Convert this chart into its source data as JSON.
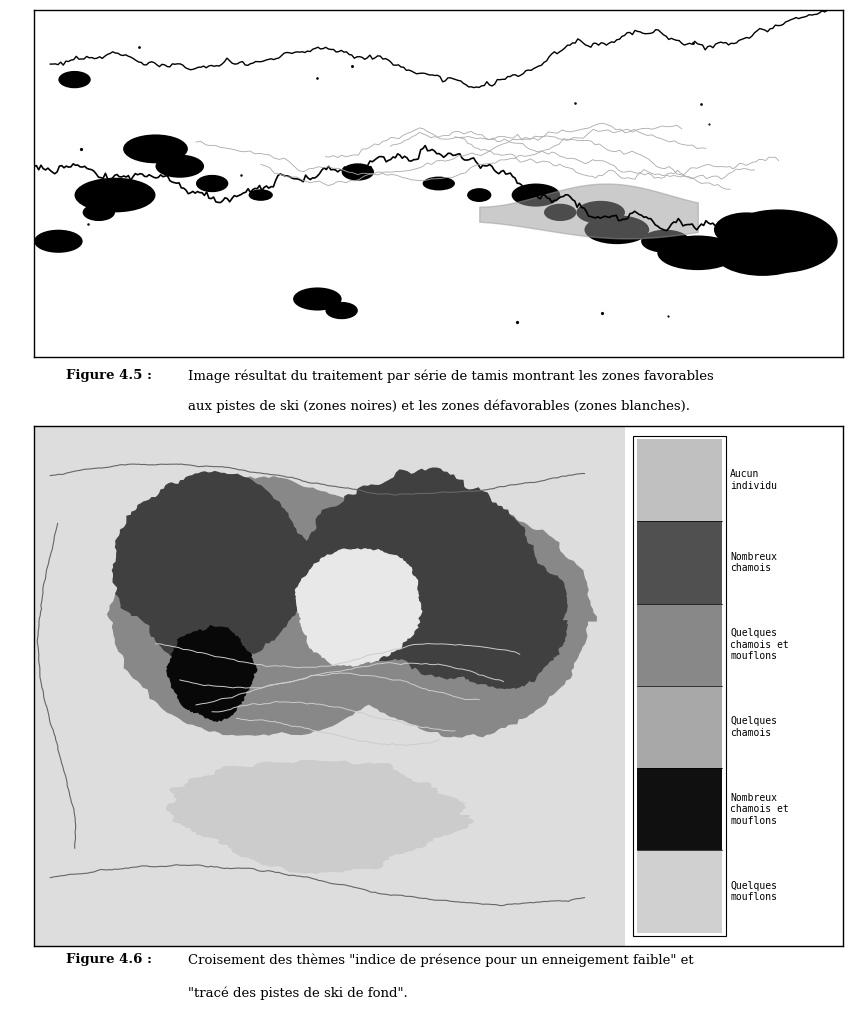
{
  "fig45_caption_bold": "Figure 4.5 :",
  "fig45_caption_text": "Image résultat du traitement par série de tamis montrant les zones favorables\naux pistes de ski (zones noires) et les zones défavorables (zones blanches).",
  "fig46_caption_bold": "Figure 4.6 :",
  "fig46_caption_text": "Croisement des thèmes \"indice de présence pour un enneigement faible\" et\n\"tracé des pistes de ski de fond\".",
  "legend_items": [
    {
      "label": "Aucun\nindividu",
      "color": "#c0c0c0"
    },
    {
      "label": "Nombreux\nchamois",
      "color": "#505050"
    },
    {
      "label": "Quelques\nchamois et\nmouflons",
      "color": "#888888"
    },
    {
      "label": "Quelques\nchamois",
      "color": "#a8a8a8"
    },
    {
      "label": "Nombreux\nchamois et\nmouflons",
      "color": "#101010"
    },
    {
      "label": "Quelques\nmouflons",
      "color": "#d0d0d0"
    }
  ],
  "background_color": "#ffffff",
  "fig_width": 8.52,
  "fig_height": 10.31
}
